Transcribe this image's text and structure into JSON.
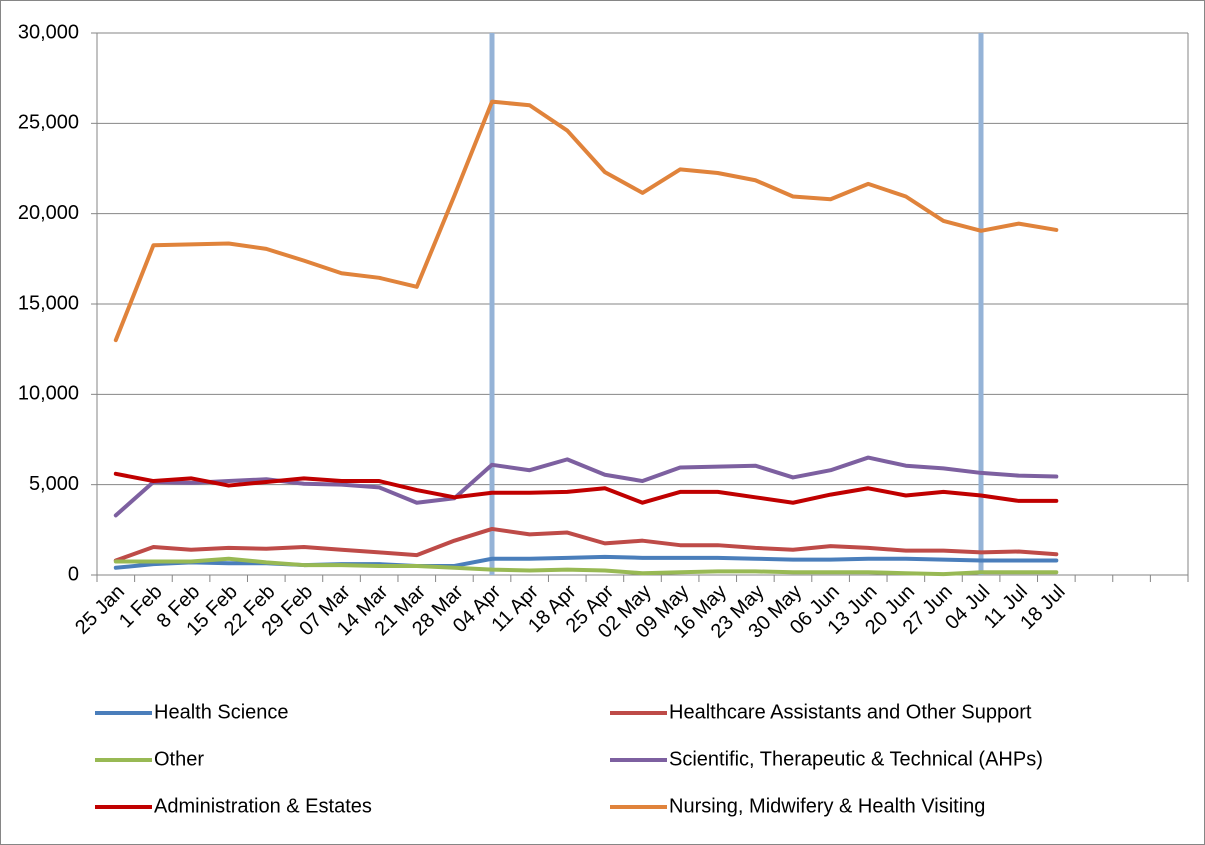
{
  "chart_data": {
    "type": "line",
    "categories": [
      "25 Jan",
      "1 Feb",
      "8 Feb",
      "15 Feb",
      "22 Feb",
      "29 Feb",
      "07 Mar",
      "14 Mar",
      "21 Mar",
      "28 Mar",
      "04 Apr",
      "11 Apr",
      "18 Apr",
      "25 Apr",
      "02 May",
      "09 May",
      "16 May",
      "23 May",
      "30 May",
      "06 Jun",
      "13 Jun",
      "20 Jun",
      "27 Jun",
      "04 Jul",
      "11 Jul",
      "18 Jul",
      null,
      null,
      null
    ],
    "series": [
      {
        "name": "Health Science",
        "color": "#4a7ebb",
        "values": [
          400,
          600,
          700,
          650,
          650,
          550,
          600,
          600,
          500,
          500,
          900,
          900,
          950,
          1000,
          950,
          950,
          950,
          900,
          850,
          850,
          900,
          900,
          850,
          800,
          800,
          800,
          null,
          null,
          null
        ]
      },
      {
        "name": "Healthcare Assistants and Other Support",
        "color": "#be4b48",
        "values": [
          800,
          1550,
          1400,
          1500,
          1450,
          1550,
          1400,
          1250,
          1100,
          1900,
          2550,
          2250,
          2350,
          1750,
          1900,
          1650,
          1650,
          1500,
          1400,
          1600,
          1500,
          1350,
          1350,
          1250,
          1300,
          1150,
          null,
          null,
          null
        ]
      },
      {
        "name": "Other",
        "color": "#98b954",
        "values": [
          750,
          750,
          750,
          900,
          700,
          550,
          550,
          500,
          500,
          400,
          300,
          250,
          300,
          250,
          100,
          150,
          200,
          200,
          150,
          150,
          150,
          100,
          50,
          150,
          150,
          150,
          null,
          null,
          null
        ]
      },
      {
        "name": "Scientific, Therapeutic & Technical (AHPs)",
        "color": "#7d60a0",
        "values": [
          3300,
          5150,
          5100,
          5200,
          5300,
          5050,
          5000,
          4850,
          4000,
          4250,
          6100,
          5800,
          6400,
          5550,
          5200,
          5950,
          6000,
          6050,
          5400,
          5800,
          6500,
          6050,
          5900,
          5650,
          5500,
          5450,
          null,
          null,
          null
        ]
      },
      {
        "name": "Administration & Estates",
        "color": "#c00000",
        "values": [
          5600,
          5200,
          5350,
          4950,
          5150,
          5350,
          5200,
          5200,
          4700,
          4300,
          4550,
          4550,
          4600,
          4800,
          4000,
          4600,
          4600,
          4300,
          4000,
          4450,
          4800,
          4400,
          4600,
          4400,
          4100,
          4100,
          null,
          null,
          null
        ]
      },
      {
        "name": "Nursing, Midwifery & Health Visiting",
        "color": "#e0833b",
        "values": [
          13000,
          18250,
          18300,
          18350,
          18050,
          17400,
          16700,
          16450,
          15950,
          21000,
          26200,
          26000,
          24600,
          22300,
          21150,
          22450,
          22250,
          21850,
          20950,
          20800,
          21650,
          20950,
          19600,
          19050,
          19450,
          19100,
          null,
          null,
          null
        ]
      }
    ],
    "ylim": [
      0,
      30000
    ],
    "yticks": [
      0,
      {
        "value": 5000,
        "label": "5,000"
      },
      {
        "value": 10000,
        "label": "10,000"
      },
      {
        "value": 15000,
        "label": "15,000"
      },
      {
        "value": 20000,
        "label": "20,000"
      },
      {
        "value": 25000,
        "label": "25,000"
      },
      {
        "value": 30000,
        "label": "30,000"
      }
    ],
    "grid": true
  }
}
